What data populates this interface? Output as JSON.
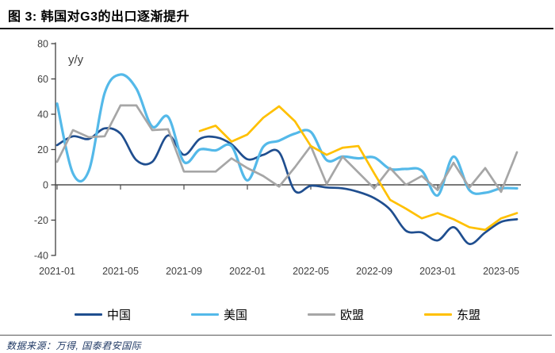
{
  "header": {
    "title": "图 3: 韩国对G3的出口逐渐提升"
  },
  "footer": {
    "source": "数据来源：万得, 国泰君安国际"
  },
  "chart_data": {
    "type": "line",
    "title": "韩国对G3的出口逐渐提升",
    "unit_label": "y/y",
    "ylabel": "",
    "xlabel": "",
    "ylim": [
      -40,
      80
    ],
    "y_ticks": [
      -40,
      -20,
      0,
      20,
      40,
      60,
      80
    ],
    "x_tick_labels": [
      "2021-01",
      "2021-05",
      "2021-09",
      "2022-01",
      "2022-05",
      "2022-09",
      "2023-01",
      "2023-05"
    ],
    "x": [
      "2021-01",
      "2021-02",
      "2021-03",
      "2021-04",
      "2021-05",
      "2021-06",
      "2021-07",
      "2021-08",
      "2021-09",
      "2021-10",
      "2021-11",
      "2021-12",
      "2022-01",
      "2022-02",
      "2022-03",
      "2022-04",
      "2022-05",
      "2022-06",
      "2022-07",
      "2022-08",
      "2022-09",
      "2022-10",
      "2022-11",
      "2022-12",
      "2023-01",
      "2023-02",
      "2023-03",
      "2023-04",
      "2023-05",
      "2023-06"
    ],
    "grid": false,
    "legend_position": "bottom",
    "axis_color": "#404040",
    "series": [
      {
        "name": "中国",
        "color": "#1f4e8f",
        "smooth": true,
        "values": [
          22.5,
          27.5,
          26,
          32,
          29,
          14,
          13,
          28,
          17,
          26,
          27,
          23,
          14.5,
          17,
          18.5,
          -3.5,
          -0.5,
          -1.5,
          -2,
          -4,
          -7.5,
          -14,
          -26,
          -27,
          -31.5,
          -24,
          -33.5,
          -27,
          -21,
          -19.5
        ]
      },
      {
        "name": "美国",
        "color": "#54b9e9",
        "smooth": true,
        "values": [
          46,
          6.5,
          8,
          52,
          62.5,
          54.5,
          33,
          38.5,
          13,
          20,
          19.5,
          22,
          2.5,
          21.5,
          25,
          29,
          30,
          14,
          16,
          15,
          15.5,
          9,
          9,
          8,
          -6,
          16,
          -3,
          -4.5,
          -2,
          -2
        ]
      },
      {
        "name": "欧盟",
        "color": "#a6a6a6",
        "smooth": false,
        "values": [
          13,
          31,
          27,
          27.5,
          45,
          45,
          31,
          31.5,
          7.5,
          7.5,
          7.5,
          15,
          9.5,
          5,
          -1,
          10,
          22,
          0.5,
          16,
          7,
          -2,
          9.5,
          0,
          5,
          -3,
          12.5,
          -1.5,
          9.5,
          -4,
          18.5
        ]
      },
      {
        "name": "东盟",
        "color": "#ffc000",
        "smooth": false,
        "values": [
          null,
          null,
          null,
          null,
          null,
          null,
          null,
          null,
          null,
          30.5,
          33.5,
          24.5,
          28.5,
          38,
          44.5,
          36,
          22,
          17,
          21,
          22,
          6.5,
          -8.5,
          -13.5,
          -19,
          -16,
          -19.5,
          -24,
          -25.5,
          -19,
          -16
        ]
      }
    ]
  }
}
